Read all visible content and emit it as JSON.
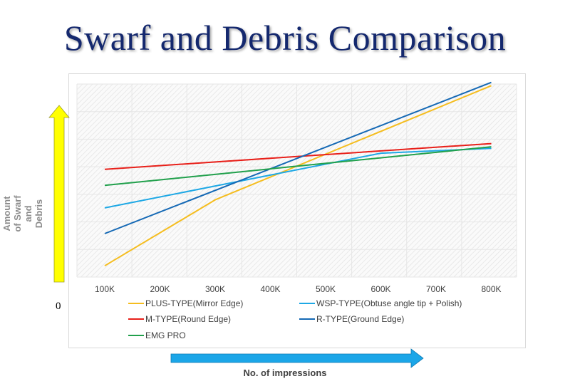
{
  "page": {
    "title": "Swarf and Debris Comparison",
    "origin_label": "0"
  },
  "chart_data": {
    "type": "line",
    "title": "Swarf and Debris Comparison",
    "xlabel": "No. of impressions",
    "ylabel": "Amount of Swarf and Debris",
    "categories": [
      "100K",
      "200K",
      "300K",
      "400K",
      "500K",
      "600K",
      "700K",
      "800K"
    ],
    "ylim": [
      0,
      6
    ],
    "grid": true,
    "legend_position": "bottom",
    "series": [
      {
        "name": "PLUS-TYPE(Mirror Edge)",
        "color": "#f5bd1f",
        "x": [
          "100K",
          "300K",
          "800K"
        ],
        "values": [
          0.35,
          2.4,
          5.95
        ]
      },
      {
        "name": "WSP-TYPE(Obtuse angle tip + Polish)",
        "color": "#1ea8e5",
        "x": [
          "100K",
          "600K",
          "800K"
        ],
        "values": [
          2.15,
          3.85,
          4.0
        ]
      },
      {
        "name": "M-TYPE(Round Edge)",
        "color": "#e8201a",
        "x": [
          "100K",
          "800K"
        ],
        "values": [
          3.35,
          4.15
        ]
      },
      {
        "name": "R-TYPE(Ground Edge)",
        "color": "#1569b5",
        "x": [
          "100K",
          "800K"
        ],
        "values": [
          1.35,
          6.05
        ]
      },
      {
        "name": "EMG PRO",
        "color": "#21a04c",
        "x": [
          "100K",
          "800K"
        ],
        "values": [
          2.85,
          4.05
        ]
      }
    ]
  },
  "arrows": {
    "y_arrow_color": "#ffff00",
    "x_arrow_color": "#1ba6e8"
  }
}
